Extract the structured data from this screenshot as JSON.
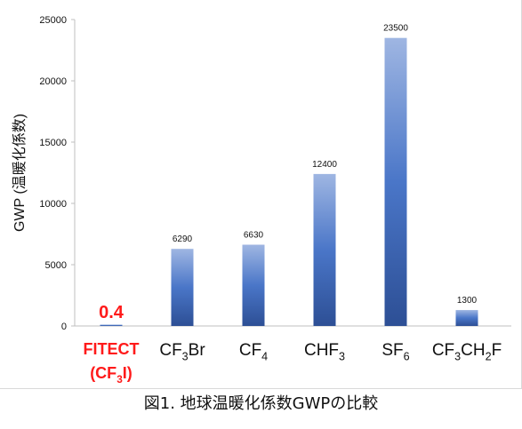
{
  "colors": {
    "bar_top": "#9fb6e2",
    "bar_mid": "#4a76c8",
    "bar_bottom": "#2d4f95",
    "highlight": "#ff1a1a",
    "axis": "#bfbfbf",
    "text": "#111111"
  },
  "chart_data": {
    "type": "bar",
    "ylabel": "GWP (温暖化係数)",
    "ylim": [
      0,
      25000
    ],
    "yticks": [
      "0",
      "5000",
      "10000",
      "15000",
      "20000",
      "25000"
    ],
    "grid": false,
    "categories": [
      {
        "label": [
          {
            "t": "FITECT"
          }
        ],
        "label2": [
          {
            "t": "(CF"
          },
          {
            "t": "3",
            "sub": true
          },
          {
            "t": "I)"
          }
        ],
        "highlight": true
      },
      {
        "label": [
          {
            "t": "CF"
          },
          {
            "t": "3",
            "sub": true
          },
          {
            "t": "Br"
          }
        ]
      },
      {
        "label": [
          {
            "t": "CF"
          },
          {
            "t": "4",
            "sub": true
          }
        ]
      },
      {
        "label": [
          {
            "t": "CHF"
          },
          {
            "t": "3",
            "sub": true
          }
        ]
      },
      {
        "label": [
          {
            "t": "SF"
          },
          {
            "t": "6",
            "sub": true
          }
        ]
      },
      {
        "label": [
          {
            "t": "CF"
          },
          {
            "t": "3",
            "sub": true
          },
          {
            "t": "CH"
          },
          {
            "t": "2",
            "sub": true
          },
          {
            "t": "F"
          }
        ]
      }
    ],
    "values": [
      0.4,
      6290,
      6630,
      12400,
      23500,
      1300
    ],
    "data_labels": [
      "0.4",
      "6290",
      "6630",
      "12400",
      "23500",
      "1300"
    ]
  },
  "caption": "図1. 地球温暖化係数GWPの比較"
}
